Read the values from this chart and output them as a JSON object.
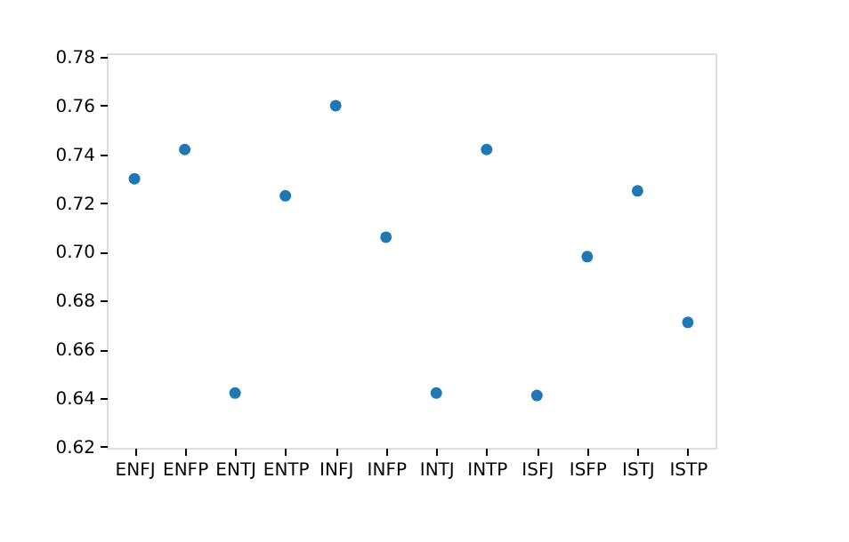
{
  "chart_data": {
    "type": "scatter",
    "categories": [
      "ENFJ",
      "ENFP",
      "ENTJ",
      "ENTP",
      "INFJ",
      "INFP",
      "INTJ",
      "INTP",
      "ISFJ",
      "ISFP",
      "ISTJ",
      "ISTP"
    ],
    "series": [
      {
        "color": "#1f77b4",
        "values": [
          0.73,
          0.742,
          0.642,
          0.723,
          0.76,
          0.706,
          0.642,
          0.742,
          0.641,
          0.698,
          0.725,
          0.671
        ]
      }
    ],
    "ylim": [
      0.6195,
      0.7815
    ],
    "yticks": [
      0.62,
      0.64,
      0.66,
      0.68,
      {
        "value": 0.7,
        "label": "0.70"
      },
      0.72,
      0.74,
      0.76,
      0.78
    ],
    "marker": "circle",
    "grid": false
  }
}
